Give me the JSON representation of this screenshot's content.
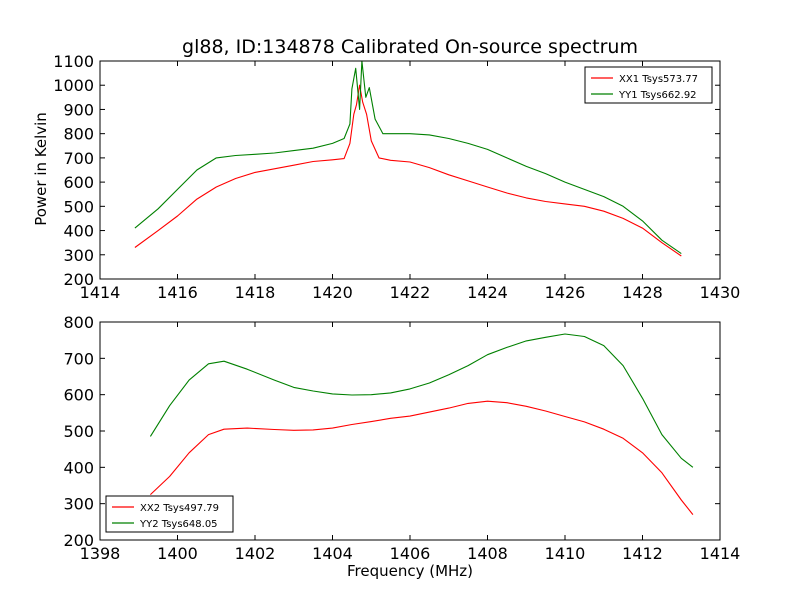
{
  "chart_data": [
    {
      "type": "line",
      "title": "gl88, ID:134878 Calibrated On-source spectrum",
      "xlabel": "",
      "ylabel": "Power in Kelvin",
      "xlim": [
        1414,
        1430
      ],
      "ylim": [
        200,
        1100
      ],
      "xticks": [
        1414,
        1416,
        1418,
        1420,
        1422,
        1424,
        1426,
        1428,
        1430
      ],
      "yticks": [
        200,
        300,
        400,
        500,
        600,
        700,
        800,
        900,
        1000,
        1100
      ],
      "legend_position": "top-right",
      "series": [
        {
          "name": "XX1 Tsys573.77",
          "color": "#ff0000",
          "points": [
            [
              1414.9,
              330
            ],
            [
              1415.5,
              400
            ],
            [
              1416,
              460
            ],
            [
              1416.5,
              530
            ],
            [
              1417,
              580
            ],
            [
              1417.5,
              615
            ],
            [
              1418,
              640
            ],
            [
              1418.5,
              655
            ],
            [
              1419,
              670
            ],
            [
              1419.5,
              685
            ],
            [
              1420,
              692
            ],
            [
              1420.3,
              697
            ],
            [
              1420.45,
              760
            ],
            [
              1420.55,
              880
            ],
            [
              1420.62,
              920
            ],
            [
              1420.7,
              1000
            ],
            [
              1420.78,
              930
            ],
            [
              1420.88,
              880
            ],
            [
              1421,
              770
            ],
            [
              1421.2,
              700
            ],
            [
              1421.5,
              690
            ],
            [
              1422,
              683
            ],
            [
              1422.5,
              660
            ],
            [
              1423,
              630
            ],
            [
              1423.5,
              605
            ],
            [
              1424,
              580
            ],
            [
              1424.5,
              555
            ],
            [
              1425,
              535
            ],
            [
              1425.5,
              520
            ],
            [
              1426,
              510
            ],
            [
              1426.5,
              500
            ],
            [
              1427,
              480
            ],
            [
              1427.5,
              450
            ],
            [
              1428,
              410
            ],
            [
              1428.5,
              350
            ],
            [
              1429,
              295
            ]
          ]
        },
        {
          "name": "YY1 Tsys662.92",
          "color": "#008000",
          "points": [
            [
              1414.9,
              410
            ],
            [
              1415.5,
              490
            ],
            [
              1416,
              570
            ],
            [
              1416.5,
              650
            ],
            [
              1417,
              700
            ],
            [
              1417.5,
              710
            ],
            [
              1418,
              715
            ],
            [
              1418.5,
              720
            ],
            [
              1419,
              730
            ],
            [
              1419.5,
              740
            ],
            [
              1420,
              760
            ],
            [
              1420.3,
              780
            ],
            [
              1420.45,
              840
            ],
            [
              1420.5,
              985
            ],
            [
              1420.6,
              1070
            ],
            [
              1420.7,
              900
            ],
            [
              1420.76,
              1100
            ],
            [
              1420.86,
              950
            ],
            [
              1420.95,
              990
            ],
            [
              1421.1,
              860
            ],
            [
              1421.3,
              800
            ],
            [
              1421.7,
              800
            ],
            [
              1422,
              800
            ],
            [
              1422.5,
              795
            ],
            [
              1423,
              780
            ],
            [
              1423.5,
              760
            ],
            [
              1424,
              735
            ],
            [
              1424.5,
              700
            ],
            [
              1425,
              665
            ],
            [
              1425.5,
              635
            ],
            [
              1426,
              600
            ],
            [
              1426.5,
              570
            ],
            [
              1427,
              540
            ],
            [
              1427.5,
              500
            ],
            [
              1428,
              440
            ],
            [
              1428.5,
              360
            ],
            [
              1429,
              305
            ]
          ]
        }
      ]
    },
    {
      "type": "line",
      "title": "",
      "xlabel": "Frequency (MHz)",
      "ylabel": "",
      "xlim": [
        1398,
        1414
      ],
      "ylim": [
        200,
        800
      ],
      "xticks": [
        1398,
        1400,
        1402,
        1404,
        1406,
        1408,
        1410,
        1412,
        1414
      ],
      "yticks": [
        200,
        300,
        400,
        500,
        600,
        700,
        800
      ],
      "legend_position": "bottom-left",
      "series": [
        {
          "name": "XX2 Tsys497.79",
          "color": "#ff0000",
          "points": [
            [
              1399.3,
              325
            ],
            [
              1399.8,
              375
            ],
            [
              1400.3,
              440
            ],
            [
              1400.8,
              490
            ],
            [
              1401.2,
              505
            ],
            [
              1401.8,
              508
            ],
            [
              1402.5,
              504
            ],
            [
              1403,
              502
            ],
            [
              1403.5,
              503
            ],
            [
              1404,
              508
            ],
            [
              1404.5,
              518
            ],
            [
              1405,
              526
            ],
            [
              1405.5,
              535
            ],
            [
              1406,
              541
            ],
            [
              1406.5,
              552
            ],
            [
              1407,
              563
            ],
            [
              1407.5,
              576
            ],
            [
              1408,
              582
            ],
            [
              1408.5,
              578
            ],
            [
              1409,
              568
            ],
            [
              1409.5,
              555
            ],
            [
              1410,
              540
            ],
            [
              1410.5,
              525
            ],
            [
              1411,
              505
            ],
            [
              1411.5,
              480
            ],
            [
              1412,
              440
            ],
            [
              1412.5,
              385
            ],
            [
              1413,
              310
            ],
            [
              1413.3,
              270
            ]
          ]
        },
        {
          "name": "YY2 Tsys648.05",
          "color": "#008000",
          "points": [
            [
              1399.3,
              485
            ],
            [
              1399.8,
              570
            ],
            [
              1400.3,
              640
            ],
            [
              1400.8,
              685
            ],
            [
              1401.2,
              692
            ],
            [
              1401.8,
              670
            ],
            [
              1402.5,
              640
            ],
            [
              1403,
              620
            ],
            [
              1403.5,
              610
            ],
            [
              1404,
              602
            ],
            [
              1404.5,
              599
            ],
            [
              1405,
              600
            ],
            [
              1405.5,
              605
            ],
            [
              1406,
              616
            ],
            [
              1406.5,
              632
            ],
            [
              1407,
              655
            ],
            [
              1407.5,
              680
            ],
            [
              1408,
              710
            ],
            [
              1408.5,
              730
            ],
            [
              1409,
              748
            ],
            [
              1409.5,
              758
            ],
            [
              1410,
              767
            ],
            [
              1410.5,
              760
            ],
            [
              1411,
              735
            ],
            [
              1411.5,
              680
            ],
            [
              1412,
              590
            ],
            [
              1412.5,
              490
            ],
            [
              1413,
              425
            ],
            [
              1413.3,
              400
            ]
          ]
        }
      ]
    }
  ]
}
